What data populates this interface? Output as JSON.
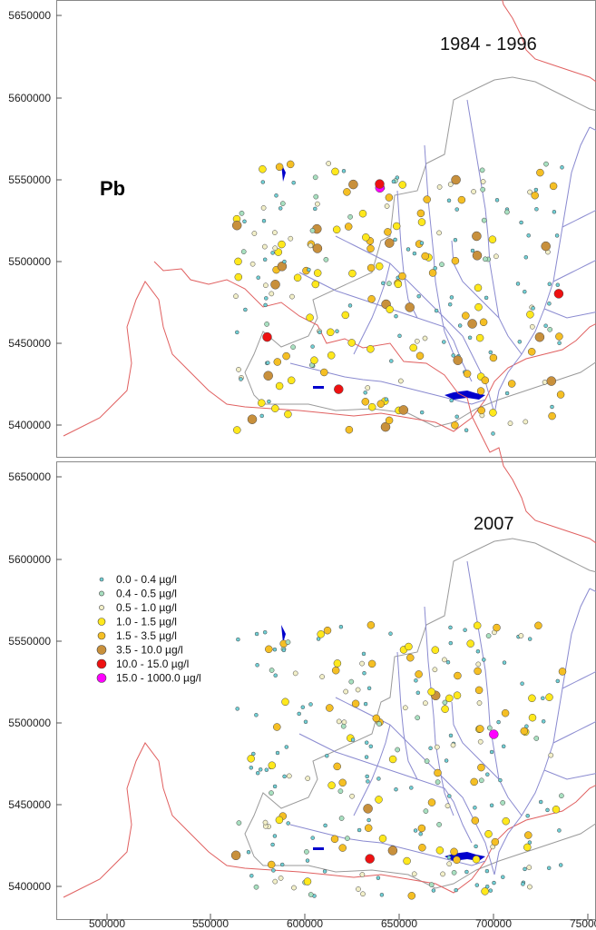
{
  "element": "Pb",
  "colors": {
    "border": "#e06060",
    "basin": "#9a9a9a",
    "river": "#8a8ad0",
    "lake": "#0000cc"
  },
  "y_axis": {
    "top_panel": [
      "5650000",
      "5600000",
      "5550000",
      "5500000",
      "5450000",
      "5400000"
    ],
    "bottom_panel": [
      "5650000",
      "5600000",
      "5550000",
      "5500000",
      "5450000",
      "5400000"
    ]
  },
  "x_axis": [
    "500000",
    "550000",
    "600000",
    "650000",
    "700000",
    "750000"
  ],
  "panels": [
    {
      "title": "1984 - 1996"
    },
    {
      "title": "2007"
    }
  ],
  "legend": [
    {
      "label": "0.0  -  0.4 µg/l",
      "color": "#6fd0d6",
      "size": "tiny"
    },
    {
      "label": "0.4  -  0.5 µg/l",
      "color": "#a8e0c0",
      "size": "small"
    },
    {
      "label": "0.5  -  1.0 µg/l",
      "color": "#f2efc8",
      "size": "small"
    },
    {
      "label": "1.0  -  1.5 µg/l",
      "color": "#ffe81c",
      "size": "medium"
    },
    {
      "label": "1.5  -  3.5 µg/l",
      "color": "#f5bf24",
      "size": "medium"
    },
    {
      "label": "3.5  -  10.0 µg/l",
      "color": "#c8903c",
      "size": "large"
    },
    {
      "label": "10.0  -  15.0 µg/l",
      "color": "#ee1111",
      "size": "large"
    },
    {
      "label": "15.0  -  1000.0 µg/l",
      "color": "#ff00ff",
      "size": "large"
    }
  ]
}
